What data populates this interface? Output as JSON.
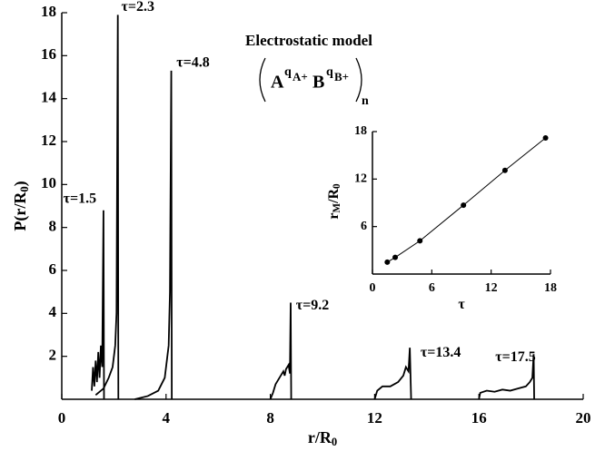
{
  "chart_data": [
    {
      "type": "line",
      "title": "Electrostatic model",
      "formula": {
        "base1": "A",
        "sup1": "q",
        "supsub1": "A+",
        "base2": "B",
        "sup2": "q",
        "supsub2": "B+",
        "sub": "n"
      },
      "xlabel": {
        "text": "r/R",
        "sub": "0"
      },
      "ylabel": {
        "text": "P(r/R",
        "sub": "0",
        "tail": ")"
      },
      "xlim": [
        0,
        20
      ],
      "ylim": [
        0,
        18
      ],
      "xticks": [
        0,
        4,
        8,
        12,
        16,
        20
      ],
      "yticks": [
        2,
        4,
        6,
        8,
        10,
        12,
        14,
        16,
        18
      ],
      "series": [
        {
          "name": "τ=1.5",
          "color": "#000000",
          "x": [
            1.15,
            1.2,
            1.25,
            1.3,
            1.35,
            1.4,
            1.45,
            1.5,
            1.55,
            1.6,
            1.62
          ],
          "values": [
            0.4,
            1.5,
            0.6,
            1.8,
            0.8,
            2.2,
            1.0,
            2.5,
            1.5,
            8.8,
            0
          ]
        },
        {
          "name": "τ=2.3",
          "color": "#000000",
          "x": [
            1.3,
            1.6,
            1.8,
            1.95,
            2.05,
            2.1,
            2.15,
            2.17
          ],
          "values": [
            0.2,
            0.5,
            1.0,
            1.5,
            2.5,
            4.0,
            17.9,
            0
          ]
        },
        {
          "name": "τ=4.8",
          "color": "#000000",
          "x": [
            2.8,
            3.3,
            3.7,
            3.95,
            4.1,
            4.15,
            4.2,
            4.22
          ],
          "values": [
            0,
            0.15,
            0.4,
            1.0,
            2.5,
            5.0,
            15.3,
            0
          ]
        },
        {
          "name": "τ=9.2",
          "color": "#000000",
          "x": [
            8,
            8.1,
            8.2,
            8.3,
            8.4,
            8.5,
            8.55,
            8.6,
            8.7,
            8.75,
            8.78,
            8.8
          ],
          "values": [
            0,
            0.3,
            0.7,
            0.9,
            1.1,
            1.3,
            1.1,
            1.4,
            1.6,
            1.2,
            4.5,
            0
          ]
        },
        {
          "name": "τ=13.4",
          "color": "#000000",
          "x": [
            12,
            12.1,
            12.3,
            12.6,
            12.9,
            13.1,
            13.2,
            13.3,
            13.35,
            13.4
          ],
          "values": [
            0,
            0.4,
            0.6,
            0.6,
            0.8,
            1.1,
            1.5,
            1.3,
            2.4,
            0
          ]
        },
        {
          "name": "τ=17.5",
          "color": "#000000",
          "x": [
            16,
            16.05,
            16.3,
            16.6,
            16.9,
            17.2,
            17.5,
            17.8,
            17.95,
            18.05,
            18.1,
            18.12
          ],
          "values": [
            0,
            0.3,
            0.4,
            0.35,
            0.45,
            0.4,
            0.5,
            0.6,
            0.8,
            1.0,
            2.1,
            0
          ]
        }
      ]
    },
    {
      "type": "scatter-line",
      "xlabel": {
        "text": "τ"
      },
      "ylabel": {
        "text": "r",
        "sub": "M",
        "tail": "/R",
        "sub2": "0"
      },
      "xlim": [
        0,
        18
      ],
      "ylim": [
        0,
        18
      ],
      "xticks": [
        0,
        6,
        12,
        18
      ],
      "yticks": [
        6,
        12,
        18
      ],
      "x": [
        1.5,
        2.3,
        4.8,
        9.2,
        13.4,
        17.5
      ],
      "values": [
        1.5,
        2.1,
        4.2,
        8.7,
        13.1,
        17.2
      ],
      "color": "#000000"
    }
  ]
}
